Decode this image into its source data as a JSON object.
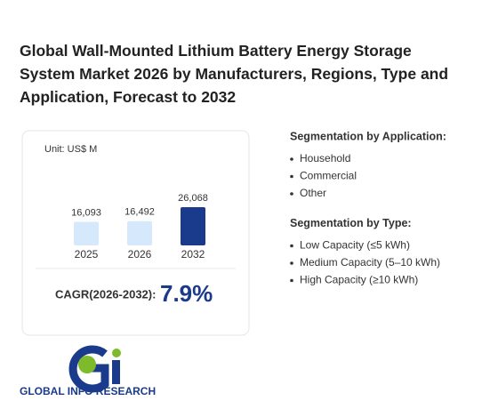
{
  "title": "Global Wall-Mounted Lithium Battery Energy Storage System Market 2026 by Manufacturers, Regions, Type and Application, Forecast to 2032",
  "chart_data": {
    "type": "bar",
    "unit": "Unit: US$ M",
    "categories": [
      "2025",
      "2026",
      "2032"
    ],
    "values": [
      16093,
      16492,
      26068
    ],
    "value_labels": [
      "16,093",
      "16,492",
      "26,068"
    ],
    "colors": [
      "#d6e8fb",
      "#d6e8fb",
      "#1a3a8c"
    ]
  },
  "cagr": {
    "label": "CAGR(2026-2032):",
    "value": "7.9%"
  },
  "segmentation": [
    {
      "heading": "Segmentation by Application:",
      "items": [
        "Household",
        "Commercial",
        "Other"
      ]
    },
    {
      "heading": "Segmentation by Type:",
      "items": [
        "Low Capacity (≤5 kWh)",
        "Medium Capacity (5–10 kWh)",
        "High Capacity (≥10 kWh)"
      ]
    }
  ],
  "logo": "GLOBAL INFO RESEARCH"
}
